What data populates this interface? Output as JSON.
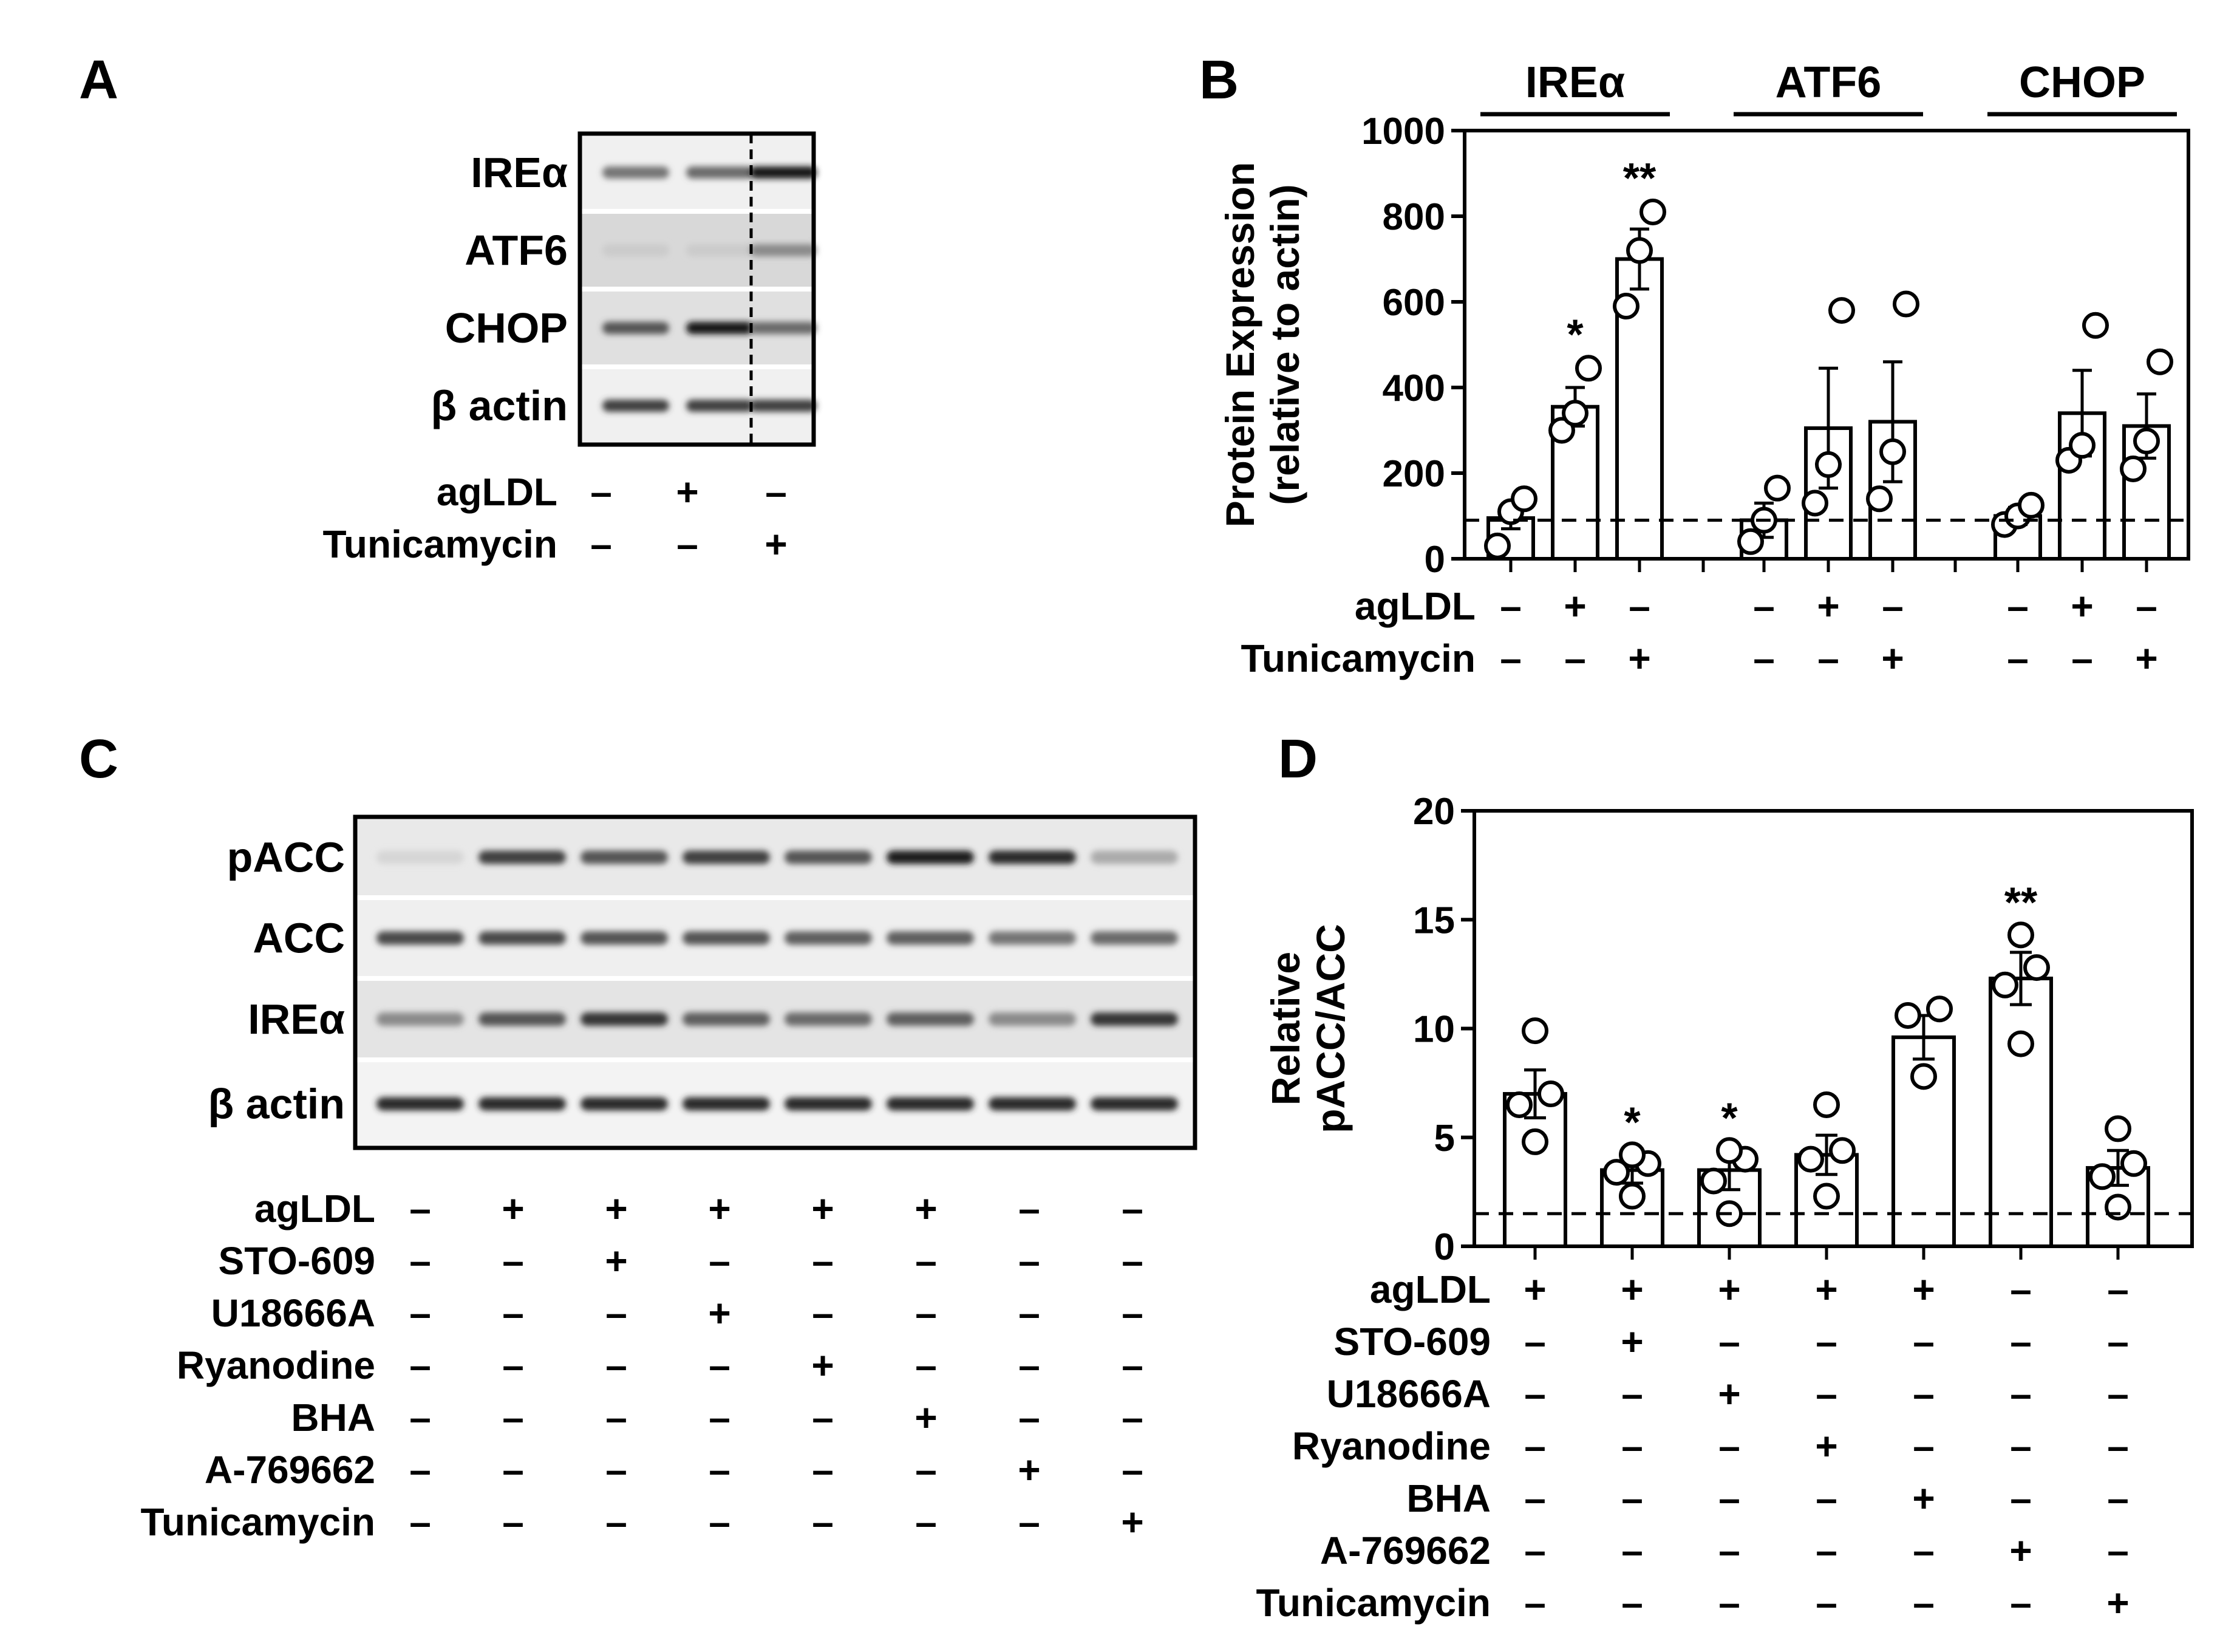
{
  "panels": {
    "A": {
      "letter": "A",
      "blot_rows": [
        "IREα",
        "ATF6",
        "CHOP",
        "β actin"
      ],
      "band_intensity": [
        [
          0.55,
          0.6,
          1.0
        ],
        [
          0.15,
          0.15,
          0.45
        ],
        [
          0.7,
          1.0,
          0.6
        ],
        [
          0.8,
          0.8,
          0.8
        ]
      ],
      "treatments": [
        {
          "name": "agLDL",
          "values": [
            "-",
            "+",
            "-"
          ]
        },
        {
          "name": "Tunicamycin",
          "values": [
            "-",
            "-",
            "+"
          ]
        }
      ]
    },
    "B": {
      "letter": "B"
    },
    "C": {
      "letter": "C",
      "blot_rows": [
        "pACC",
        "ACC",
        "IREα",
        "β actin"
      ],
      "band_intensity": [
        [
          0.1,
          0.8,
          0.7,
          0.8,
          0.7,
          0.95,
          0.9,
          0.3
        ],
        [
          0.75,
          0.75,
          0.7,
          0.7,
          0.65,
          0.65,
          0.55,
          0.6
        ],
        [
          0.45,
          0.7,
          0.85,
          0.65,
          0.6,
          0.65,
          0.45,
          0.85
        ],
        [
          0.9,
          0.9,
          0.9,
          0.9,
          0.9,
          0.9,
          0.9,
          0.9
        ]
      ],
      "treatments": [
        {
          "name": "agLDL",
          "values": [
            "-",
            "+",
            "+",
            "+",
            "+",
            "+",
            "-",
            "-"
          ]
        },
        {
          "name": "STO-609",
          "values": [
            "-",
            "-",
            "+",
            "-",
            "-",
            "-",
            "-",
            "-"
          ]
        },
        {
          "name": "U18666A",
          "values": [
            "-",
            "-",
            "-",
            "+",
            "-",
            "-",
            "-",
            "-"
          ]
        },
        {
          "name": "Ryanodine",
          "values": [
            "-",
            "-",
            "-",
            "-",
            "+",
            "-",
            "-",
            "-"
          ]
        },
        {
          "name": "BHA",
          "values": [
            "-",
            "-",
            "-",
            "-",
            "-",
            "+",
            "-",
            "-"
          ]
        },
        {
          "name": "A-769662",
          "values": [
            "-",
            "-",
            "-",
            "-",
            "-",
            "-",
            "+",
            "-"
          ]
        },
        {
          "name": "Tunicamycin",
          "values": [
            "-",
            "-",
            "-",
            "-",
            "-",
            "-",
            "-",
            "+"
          ]
        }
      ]
    },
    "D": {
      "letter": "D"
    }
  },
  "chart_data": [
    {
      "panel": "B",
      "type": "bar",
      "ylabel": "Protein Expression (relative to actin)",
      "ylabel_lines": [
        "Protein Expression",
        "(relative to actin)"
      ],
      "ylim": [
        0,
        1000
      ],
      "yticks": [
        0,
        200,
        400,
        600,
        800,
        1000
      ],
      "reference_line": 90,
      "groups": [
        {
          "name": "IREα",
          "bars": [
            {
              "value": 95,
              "error": 25,
              "points": [
                30,
                110,
                140
              ],
              "sig": ""
            },
            {
              "value": 355,
              "error": 45,
              "points": [
                300,
                340,
                445
              ],
              "sig": "*"
            },
            {
              "value": 700,
              "error": 70,
              "points": [
                590,
                720,
                810
              ],
              "sig": "**"
            }
          ]
        },
        {
          "name": "ATF6",
          "bars": [
            {
              "value": 90,
              "error": 40,
              "points": [
                40,
                90,
                165
              ],
              "sig": ""
            },
            {
              "value": 305,
              "error": 140,
              "points": [
                130,
                220,
                580
              ],
              "sig": ""
            },
            {
              "value": 320,
              "error": 140,
              "points": [
                140,
                250,
                595
              ],
              "sig": ""
            }
          ]
        },
        {
          "name": "CHOP",
          "bars": [
            {
              "value": 100,
              "error": 20,
              "points": [
                80,
                100,
                125
              ],
              "sig": ""
            },
            {
              "value": 340,
              "error": 100,
              "points": [
                230,
                265,
                545
              ],
              "sig": ""
            },
            {
              "value": 310,
              "error": 75,
              "points": [
                210,
                275,
                460
              ],
              "sig": ""
            }
          ]
        }
      ],
      "treatments": [
        {
          "name": "agLDL",
          "values": [
            "-",
            "+",
            "-",
            "-",
            "+",
            "-",
            "-",
            "+",
            "-"
          ]
        },
        {
          "name": "Tunicamycin",
          "values": [
            "-",
            "-",
            "+",
            "-",
            "-",
            "+",
            "-",
            "-",
            "+"
          ]
        }
      ],
      "grid": false,
      "legend": "none"
    },
    {
      "panel": "D",
      "type": "bar",
      "ylabel": "Relative pACC/ACC",
      "ylabel_lines": [
        "Relative",
        "pACC/ACC"
      ],
      "ylim": [
        0,
        20
      ],
      "yticks": [
        0,
        5,
        10,
        15,
        20
      ],
      "reference_line": 1.5,
      "bars": [
        {
          "value": 7.0,
          "error": 1.1,
          "points": [
            4.8,
            6.5,
            7.0,
            9.9
          ],
          "sig": ""
        },
        {
          "value": 3.5,
          "error": 0.6,
          "points": [
            2.3,
            3.4,
            3.8,
            4.2
          ],
          "sig": "*"
        },
        {
          "value": 3.5,
          "error": 0.9,
          "points": [
            1.5,
            3.0,
            4.0,
            4.4
          ],
          "sig": "*"
        },
        {
          "value": 4.2,
          "error": 0.9,
          "points": [
            2.3,
            4.0,
            4.4,
            6.5
          ],
          "sig": ""
        },
        {
          "value": 9.6,
          "error": 1.0,
          "points": [
            7.8,
            10.6,
            10.9
          ],
          "sig": ""
        },
        {
          "value": 12.3,
          "error": 1.2,
          "points": [
            9.3,
            12.0,
            12.8,
            14.3
          ],
          "sig": "**"
        },
        {
          "value": 3.6,
          "error": 0.8,
          "points": [
            1.8,
            3.2,
            3.8,
            5.4
          ],
          "sig": ""
        }
      ],
      "treatments": [
        {
          "name": "agLDL",
          "values": [
            "+",
            "+",
            "+",
            "+",
            "+",
            "-",
            "-"
          ]
        },
        {
          "name": "STO-609",
          "values": [
            "-",
            "+",
            "-",
            "-",
            "-",
            "-",
            "-"
          ]
        },
        {
          "name": "U18666A",
          "values": [
            "-",
            "-",
            "+",
            "-",
            "-",
            "-",
            "-"
          ]
        },
        {
          "name": "Ryanodine",
          "values": [
            "-",
            "-",
            "-",
            "+",
            "-",
            "-",
            "-"
          ]
        },
        {
          "name": "BHA",
          "values": [
            "-",
            "-",
            "-",
            "-",
            "+",
            "-",
            "-"
          ]
        },
        {
          "name": "A-769662",
          "values": [
            "-",
            "-",
            "-",
            "-",
            "-",
            "+",
            "-"
          ]
        },
        {
          "name": "Tunicamycin",
          "values": [
            "-",
            "-",
            "-",
            "-",
            "-",
            "-",
            "+"
          ]
        }
      ],
      "grid": false,
      "legend": "none"
    }
  ]
}
